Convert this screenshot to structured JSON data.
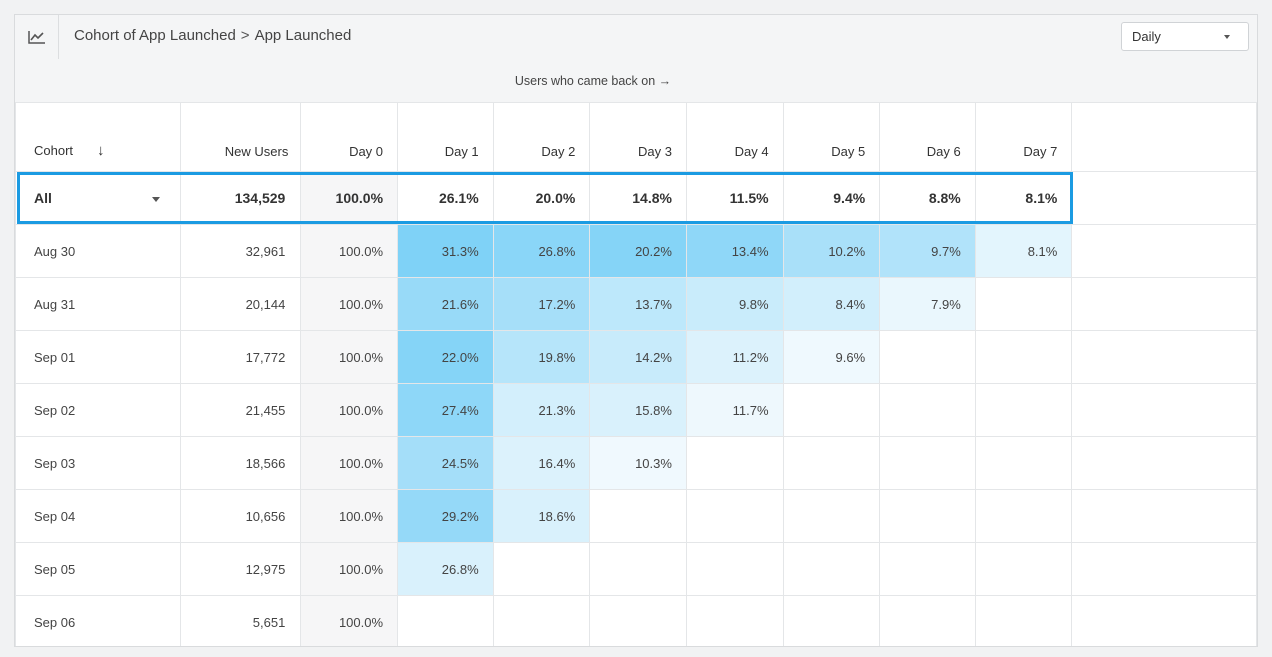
{
  "header": {
    "title_part1": "Cohort of App Launched",
    "title_separator": ">",
    "title_part2": "App Launched",
    "interval_select": "Daily",
    "chart_icon": "line-chart-icon"
  },
  "subheader": {
    "label": "Users who came back on →"
  },
  "table": {
    "columns": {
      "cohort": "Cohort",
      "sort_icon": "↓",
      "new_users": "New Users",
      "days": [
        "Day 0",
        "Day 1",
        "Day 2",
        "Day 3",
        "Day 4",
        "Day 5",
        "Day 6",
        "Day 7"
      ]
    },
    "all_row": {
      "label": "All",
      "new_users": "134,529",
      "values": [
        "100.0%",
        "26.1%",
        "20.0%",
        "14.8%",
        "11.5%",
        "9.4%",
        "8.8%",
        "8.1%"
      ]
    },
    "rows": [
      {
        "cohort": "Aug 30",
        "new_users": "32,961",
        "values": [
          "100.0%",
          "31.3%",
          "26.8%",
          "20.2%",
          "13.4%",
          "10.2%",
          "9.7%",
          "8.1%"
        ]
      },
      {
        "cohort": "Aug 31",
        "new_users": "20,144",
        "values": [
          "100.0%",
          "21.6%",
          "17.2%",
          "13.7%",
          "9.8%",
          "8.4%",
          "7.9%",
          ""
        ]
      },
      {
        "cohort": "Sep 01",
        "new_users": "17,772",
        "values": [
          "100.0%",
          "22.0%",
          "19.8%",
          "14.2%",
          "11.2%",
          "9.6%",
          "",
          ""
        ]
      },
      {
        "cohort": "Sep 02",
        "new_users": "21,455",
        "values": [
          "100.0%",
          "27.4%",
          "21.3%",
          "15.8%",
          "11.7%",
          "",
          "",
          ""
        ]
      },
      {
        "cohort": "Sep 03",
        "new_users": "18,566",
        "values": [
          "100.0%",
          "24.5%",
          "16.4%",
          "10.3%",
          "",
          "",
          "",
          ""
        ]
      },
      {
        "cohort": "Sep 04",
        "new_users": "10,656",
        "values": [
          "100.0%",
          "29.2%",
          "18.6%",
          "",
          "",
          "",
          "",
          ""
        ]
      },
      {
        "cohort": "Sep 05",
        "new_users": "12,975",
        "values": [
          "100.0%",
          "26.8%",
          "",
          "",
          "",
          "",
          "",
          ""
        ]
      },
      {
        "cohort": "Sep 06",
        "new_users": "5,651",
        "values": [
          "100.0%",
          "",
          "",
          "",
          "",
          "",
          "",
          ""
        ]
      }
    ],
    "heat_colors": [
      [
        "",
        "#7fd2f7",
        "#8ad6f8",
        "#85d4f7",
        "#8fd7f8",
        "#a9e0f9",
        "#b1e3fa",
        "#e3f5fd"
      ],
      [
        "",
        "#98daf8",
        "#a6dff9",
        "#bde8fb",
        "#c9ecfb",
        "#d2effc",
        "#eaf7fd",
        ""
      ],
      [
        "",
        "#85d4f7",
        "#b6e5fa",
        "#c8ebfb",
        "#dcf2fc",
        "#eff9fe",
        "",
        ""
      ],
      [
        "",
        "#8ed7f8",
        "#d3effc",
        "#d9f1fc",
        "#eef8fd",
        "",
        "",
        ""
      ],
      [
        "",
        "#a4def9",
        "#dcf2fc",
        "#f0f9fe",
        "",
        "",
        "",
        ""
      ],
      [
        "",
        "#95d9f8",
        "#d9f1fc",
        "",
        "",
        "",
        "",
        ""
      ],
      [
        "",
        "#d9f1fc",
        "",
        "",
        "",
        "",
        "",
        ""
      ],
      [
        "",
        "",
        "",
        "",
        "",
        "",
        "",
        ""
      ]
    ]
  }
}
